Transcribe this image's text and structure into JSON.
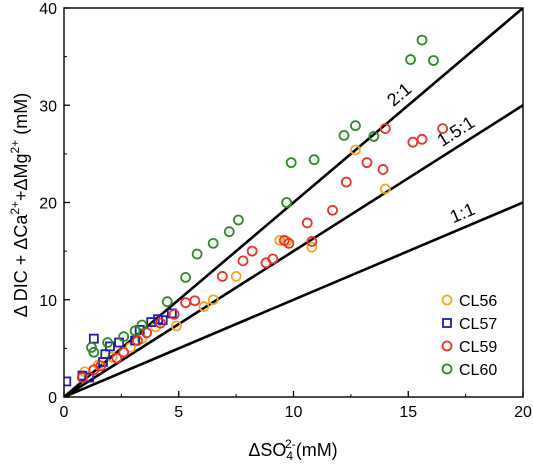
{
  "chart_data": {
    "type": "scatter",
    "xlabel": {
      "main": "ΔSO",
      "sub": "4",
      "sup": "2-",
      "unit": "(mM)"
    },
    "ylabel": {
      "p1": "Δ DIC + ΔCa",
      "sup1": "2+",
      "p2": "+ΔMg",
      "sup2": "2+",
      "p3": " (mM)"
    },
    "xlim": [
      0,
      20
    ],
    "ylim": [
      0,
      40
    ],
    "xticks": [
      0,
      5,
      10,
      15,
      20
    ],
    "yticks": [
      0,
      10,
      20,
      30,
      40
    ],
    "grid": false,
    "legend": "bottom-right",
    "reference_lines": [
      {
        "label": "2:1",
        "slope": 2
      },
      {
        "label": "1.5:1",
        "slope": 1.5
      },
      {
        "label": "1:1",
        "slope": 1
      }
    ],
    "series": [
      {
        "name": "CL56",
        "marker": "circle",
        "color": "#f5a623",
        "points": [
          [
            0.9,
            2.6
          ],
          [
            1.5,
            3.3
          ],
          [
            2.1,
            4.1
          ],
          [
            2.9,
            5.1
          ],
          [
            3.4,
            6.0
          ],
          [
            4.0,
            7.2
          ],
          [
            4.9,
            7.3
          ],
          [
            6.1,
            9.3
          ],
          [
            6.5,
            10.0
          ],
          [
            7.5,
            12.4
          ],
          [
            9.4,
            16.1
          ],
          [
            9.7,
            16.0
          ],
          [
            10.8,
            15.4
          ],
          [
            12.7,
            25.4
          ],
          [
            14.0,
            21.4
          ]
        ]
      },
      {
        "name": "CL57",
        "marker": "square",
        "color": "#1f1fa8",
        "points": [
          [
            0.1,
            1.6
          ],
          [
            0.8,
            2.2
          ],
          [
            1.1,
            2.0
          ],
          [
            1.3,
            6.0
          ],
          [
            1.7,
            3.6
          ],
          [
            1.8,
            4.4
          ],
          [
            2.0,
            5.2
          ],
          [
            2.4,
            5.6
          ],
          [
            3.1,
            5.8
          ],
          [
            3.3,
            6.9
          ],
          [
            3.8,
            7.7
          ],
          [
            4.1,
            8.0
          ],
          [
            4.3,
            7.9
          ],
          [
            4.7,
            8.6
          ]
        ]
      },
      {
        "name": "CL59",
        "marker": "circle",
        "color": "#e8322b",
        "points": [
          [
            0.8,
            2.0
          ],
          [
            1.3,
            2.8
          ],
          [
            1.6,
            3.2
          ],
          [
            2.3,
            4.0
          ],
          [
            2.6,
            4.6
          ],
          [
            3.2,
            5.8
          ],
          [
            3.6,
            6.6
          ],
          [
            4.2,
            7.6
          ],
          [
            4.8,
            8.5
          ],
          [
            5.3,
            9.7
          ],
          [
            5.7,
            9.9
          ],
          [
            6.9,
            12.4
          ],
          [
            7.8,
            14.0
          ],
          [
            8.2,
            15.0
          ],
          [
            8.8,
            13.8
          ],
          [
            9.1,
            14.2
          ],
          [
            9.6,
            16.1
          ],
          [
            9.8,
            15.8
          ],
          [
            10.6,
            17.9
          ],
          [
            10.8,
            16.0
          ],
          [
            11.7,
            19.2
          ],
          [
            12.3,
            22.1
          ],
          [
            13.2,
            24.1
          ],
          [
            13.9,
            23.4
          ],
          [
            14.0,
            27.6
          ],
          [
            15.2,
            26.2
          ],
          [
            15.6,
            26.5
          ],
          [
            16.5,
            27.6
          ]
        ]
      },
      {
        "name": "CL60",
        "marker": "circle",
        "color": "#2e8b28",
        "points": [
          [
            1.2,
            5.1
          ],
          [
            1.3,
            4.6
          ],
          [
            1.9,
            5.6
          ],
          [
            2.6,
            6.2
          ],
          [
            3.1,
            6.8
          ],
          [
            3.4,
            7.4
          ],
          [
            4.5,
            9.8
          ],
          [
            5.3,
            12.3
          ],
          [
            5.8,
            14.7
          ],
          [
            6.5,
            15.8
          ],
          [
            7.2,
            17.0
          ],
          [
            7.6,
            18.2
          ],
          [
            9.7,
            20.0
          ],
          [
            9.9,
            24.1
          ],
          [
            10.9,
            24.4
          ],
          [
            12.2,
            26.9
          ],
          [
            12.7,
            27.9
          ],
          [
            13.5,
            26.8
          ],
          [
            15.1,
            34.7
          ],
          [
            15.6,
            36.7
          ],
          [
            16.1,
            34.6
          ]
        ]
      }
    ]
  }
}
